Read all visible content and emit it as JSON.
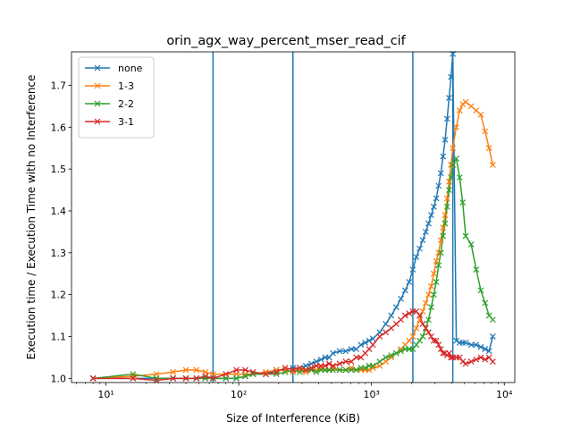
{
  "chart_data": {
    "type": "line",
    "title": "orin_agx_way_percent_mser_read_cif",
    "xlabel": "Size of Interference (KiB)",
    "ylabel": "Execution time / Execution Time with no Interference",
    "x_scale": "log",
    "xlim": [
      5.5,
      12000
    ],
    "ylim": [
      0.99,
      1.78
    ],
    "x_ticks": [
      10,
      100,
      1000,
      10000
    ],
    "x_tick_labels": [
      "10¹",
      "10²",
      "10³",
      "10⁴"
    ],
    "y_ticks": [
      1.0,
      1.1,
      1.2,
      1.3,
      1.4,
      1.5,
      1.6,
      1.7
    ],
    "y_tick_labels": [
      "1.0",
      "1.1",
      "1.2",
      "1.3",
      "1.4",
      "1.5",
      "1.6",
      "1.7"
    ],
    "grid": false,
    "legend_position": "top-left",
    "vertical_lines_x": [
      64,
      256,
      2048,
      4096
    ],
    "vertical_line_color": "#1f77b4",
    "series": [
      {
        "name": "none",
        "color": "#1f77b4",
        "x": [
          8,
          16,
          24,
          32,
          40,
          48,
          56,
          64,
          80,
          96,
          112,
          128,
          160,
          192,
          224,
          256,
          288,
          320,
          352,
          384,
          416,
          448,
          480,
          512,
          576,
          640,
          704,
          768,
          832,
          896,
          960,
          1024,
          1152,
          1280,
          1408,
          1536,
          1664,
          1792,
          1920,
          2048,
          2176,
          2304,
          2432,
          2560,
          2688,
          2816,
          2944,
          3072,
          3200,
          3328,
          3456,
          3584,
          3712,
          3840,
          3968,
          4096,
          4352,
          4608,
          4864,
          5120,
          5632,
          6144,
          6656,
          7168,
          7680,
          8192
        ],
        "y": [
          1.0,
          1.0,
          1.0,
          1.0,
          1.0,
          1.0,
          1.0,
          1.0,
          1.0,
          1.0,
          1.005,
          1.01,
          1.01,
          1.02,
          1.02,
          1.025,
          1.025,
          1.03,
          1.035,
          1.04,
          1.045,
          1.05,
          1.05,
          1.06,
          1.065,
          1.065,
          1.07,
          1.07,
          1.08,
          1.085,
          1.09,
          1.095,
          1.11,
          1.13,
          1.15,
          1.17,
          1.19,
          1.21,
          1.23,
          1.26,
          1.29,
          1.31,
          1.33,
          1.35,
          1.37,
          1.39,
          1.41,
          1.43,
          1.46,
          1.49,
          1.53,
          1.57,
          1.62,
          1.67,
          1.72,
          1.775,
          1.09,
          1.085,
          1.085,
          1.085,
          1.08,
          1.08,
          1.075,
          1.07,
          1.065,
          1.1
        ]
      },
      {
        "name": "1-3",
        "color": "#ff7f0e",
        "x": [
          8,
          16,
          24,
          32,
          40,
          48,
          56,
          64,
          80,
          96,
          112,
          128,
          160,
          192,
          224,
          256,
          288,
          320,
          352,
          384,
          416,
          448,
          480,
          512,
          576,
          640,
          704,
          768,
          832,
          896,
          960,
          1024,
          1152,
          1280,
          1408,
          1536,
          1664,
          1792,
          1920,
          2048,
          2176,
          2304,
          2432,
          2560,
          2688,
          2816,
          2944,
          3072,
          3200,
          3328,
          3456,
          3584,
          3712,
          3840,
          3968,
          4096,
          4352,
          4608,
          4864,
          5120,
          5632,
          6144,
          6656,
          7168,
          7680,
          8192
        ],
        "y": [
          1.0,
          1.005,
          1.01,
          1.015,
          1.02,
          1.02,
          1.015,
          1.01,
          1.01,
          1.01,
          1.01,
          1.01,
          1.015,
          1.02,
          1.02,
          1.015,
          1.02,
          1.015,
          1.02,
          1.02,
          1.025,
          1.02,
          1.02,
          1.025,
          1.02,
          1.02,
          1.025,
          1.02,
          1.02,
          1.02,
          1.02,
          1.025,
          1.03,
          1.04,
          1.05,
          1.06,
          1.07,
          1.08,
          1.09,
          1.1,
          1.12,
          1.14,
          1.16,
          1.18,
          1.2,
          1.22,
          1.25,
          1.28,
          1.3,
          1.33,
          1.36,
          1.39,
          1.43,
          1.47,
          1.51,
          1.55,
          1.6,
          1.64,
          1.655,
          1.66,
          1.65,
          1.64,
          1.63,
          1.59,
          1.55,
          1.51
        ]
      },
      {
        "name": "2-2",
        "color": "#2ca02c",
        "x": [
          8,
          16,
          24,
          32,
          40,
          48,
          56,
          64,
          80,
          96,
          112,
          128,
          160,
          192,
          224,
          256,
          288,
          320,
          352,
          384,
          416,
          448,
          480,
          512,
          576,
          640,
          704,
          768,
          832,
          896,
          960,
          1024,
          1152,
          1280,
          1408,
          1536,
          1664,
          1792,
          1920,
          2048,
          2176,
          2304,
          2432,
          2560,
          2688,
          2816,
          2944,
          3072,
          3200,
          3328,
          3456,
          3584,
          3712,
          3840,
          3968,
          4096,
          4352,
          4608,
          4864,
          5120,
          5632,
          6144,
          6656,
          7168,
          7680,
          8192
        ],
        "y": [
          1.0,
          1.01,
          1.0,
          1.0,
          1.0,
          1.0,
          1.0,
          1.0,
          1.0,
          1.0,
          1.005,
          1.01,
          1.01,
          1.01,
          1.015,
          1.02,
          1.015,
          1.02,
          1.02,
          1.015,
          1.02,
          1.02,
          1.02,
          1.02,
          1.02,
          1.02,
          1.02,
          1.02,
          1.025,
          1.025,
          1.03,
          1.03,
          1.04,
          1.05,
          1.055,
          1.06,
          1.065,
          1.07,
          1.07,
          1.07,
          1.08,
          1.09,
          1.1,
          1.12,
          1.14,
          1.17,
          1.2,
          1.23,
          1.27,
          1.3,
          1.34,
          1.37,
          1.41,
          1.45,
          1.48,
          1.51,
          1.525,
          1.48,
          1.42,
          1.34,
          1.32,
          1.26,
          1.21,
          1.18,
          1.15,
          1.14
        ]
      },
      {
        "name": "3-1",
        "color": "#d62728",
        "x": [
          8,
          16,
          24,
          32,
          40,
          48,
          56,
          64,
          80,
          96,
          112,
          128,
          160,
          192,
          224,
          256,
          288,
          320,
          352,
          384,
          416,
          448,
          480,
          512,
          576,
          640,
          704,
          768,
          832,
          896,
          960,
          1024,
          1152,
          1280,
          1408,
          1536,
          1664,
          1792,
          1920,
          2048,
          2176,
          2304,
          2432,
          2560,
          2688,
          2816,
          2944,
          3072,
          3200,
          3328,
          3456,
          3584,
          3712,
          3840,
          3968,
          4096,
          4352,
          4608,
          4864,
          5120,
          5632,
          6144,
          6656,
          7168,
          7680,
          8192
        ],
        "y": [
          1.0,
          1.0,
          0.995,
          1.0,
          1.0,
          1.0,
          1.005,
          1.0,
          1.01,
          1.02,
          1.02,
          1.015,
          1.01,
          1.015,
          1.025,
          1.02,
          1.025,
          1.02,
          1.025,
          1.03,
          1.03,
          1.03,
          1.035,
          1.03,
          1.035,
          1.04,
          1.04,
          1.05,
          1.05,
          1.06,
          1.07,
          1.08,
          1.1,
          1.11,
          1.12,
          1.13,
          1.14,
          1.15,
          1.155,
          1.16,
          1.16,
          1.15,
          1.13,
          1.12,
          1.11,
          1.1,
          1.09,
          1.09,
          1.08,
          1.07,
          1.06,
          1.06,
          1.055,
          1.06,
          1.05,
          1.05,
          1.05,
          1.05,
          1.04,
          1.035,
          1.04,
          1.045,
          1.05,
          1.045,
          1.05,
          1.04
        ]
      }
    ]
  }
}
